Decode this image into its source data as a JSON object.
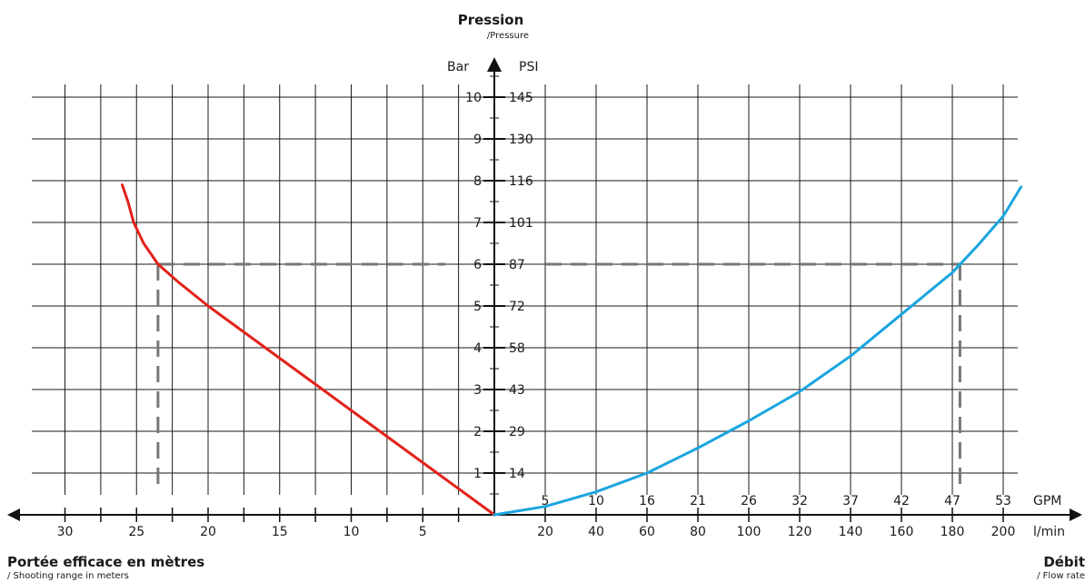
{
  "chart_data": {
    "type": "line",
    "title": "Pression",
    "title_sub": "/Pressure",
    "left_title": "Portée efficace en mètres",
    "left_sub": "/ Shooting range in meters",
    "right_title": "Débit",
    "right_sub": "/ Flow rate",
    "y_unit_bar": "Bar",
    "y_unit_psi": "PSI",
    "x_unit_gpm": "GPM",
    "x_unit_lmin": "l/min",
    "y_ticks_bar": [
      "1",
      "2",
      "3",
      "4",
      "5",
      "6",
      "7",
      "8",
      "9",
      "10"
    ],
    "y_ticks_psi": [
      "14",
      "29",
      "43",
      "58",
      "72",
      "87",
      "101",
      "116",
      "130",
      "145"
    ],
    "x_ticks_range": [
      "30",
      "25",
      "20",
      "15",
      "10",
      "5"
    ],
    "x_ticks_gpm": [
      "5",
      "10",
      "16",
      "21",
      "26",
      "32",
      "37",
      "42",
      "47",
      "53"
    ],
    "x_ticks_lmin": [
      "20",
      "40",
      "60",
      "80",
      "100",
      "120",
      "140",
      "160",
      "180",
      "200"
    ],
    "ylim_bar": [
      0,
      10
    ],
    "range_xlim": [
      0,
      30
    ],
    "flow_xlim_lmin": [
      0,
      200
    ],
    "series": [
      {
        "axis": "range",
        "color": "#e32119",
        "x": [
          0,
          2,
          4,
          6,
          8,
          10,
          12,
          14,
          16,
          18,
          20,
          22,
          23.5,
          24.5,
          25.2,
          25.6,
          26
        ],
        "y": [
          0,
          0.5,
          1.0,
          1.5,
          2.0,
          2.5,
          3.0,
          3.5,
          4.0,
          4.5,
          5.0,
          5.55,
          6.0,
          6.5,
          7.0,
          7.5,
          7.9
        ]
      },
      {
        "axis": "flow",
        "color": "#1aa5e0",
        "x": [
          0,
          20,
          40,
          60,
          80,
          100,
          120,
          140,
          160,
          180,
          190,
          200,
          207
        ],
        "y": [
          0,
          0.2,
          0.55,
          1.0,
          1.6,
          2.25,
          2.95,
          3.8,
          4.8,
          5.8,
          6.45,
          7.15,
          7.85
        ]
      }
    ],
    "reference": {
      "pressure_bar": 6,
      "range_m": 23.5,
      "flow_lmin": 183
    },
    "grid": true
  }
}
